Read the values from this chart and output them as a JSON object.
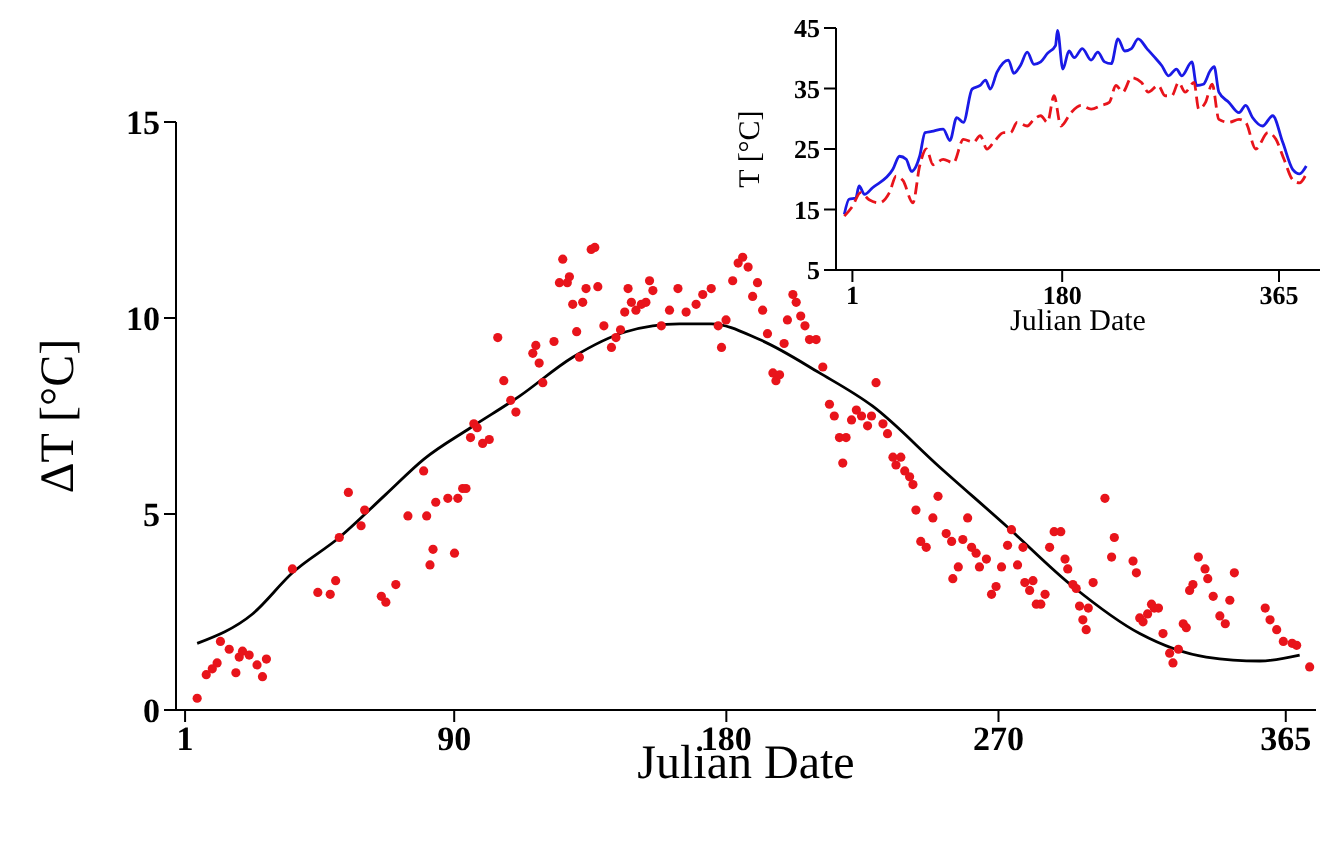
{
  "chart_data": [
    {
      "type": "scatter",
      "xlabel": "Julian Date",
      "ylabel": "ΔT [°C]",
      "xlim": [
        -2,
        375
      ],
      "xticks": [
        1,
        90,
        180,
        270,
        365
      ],
      "ylim": [
        0,
        15
      ],
      "yticks": [
        0,
        5,
        10,
        15
      ],
      "grid": false,
      "legend": false,
      "marker": "circle",
      "series": [
        {
          "color": "#e8141b",
          "x": [
            5,
            8,
            10,
            11.6,
            12.7,
            15.6,
            17.8,
            18.9,
            20,
            22.2,
            24.8,
            26.6,
            27.9,
            36.5,
            44.9,
            49,
            50.8,
            52,
            55,
            59.2,
            60.4,
            65.9,
            67.4,
            70.7,
            74.7,
            79.9,
            80.9,
            82,
            83,
            83.9,
            87.9,
            90.1,
            91.2,
            92.8,
            93.9,
            95.4,
            96.5,
            97.6,
            99.4,
            101.6,
            104.4,
            106.4,
            108.7,
            110.4,
            116,
            117,
            118.1,
            119.3,
            123,
            124.8,
            125.9,
            127.4,
            128.1,
            129.2,
            130.5,
            131.4,
            132.5,
            133.6,
            135.3,
            136.5,
            137.5,
            139.5,
            142,
            143.5,
            145,
            146.4,
            147.5,
            148.6,
            150.1,
            151.9,
            153.4,
            154.6,
            155.7,
            158.5,
            161.2,
            164,
            166.7,
            170,
            172.2,
            175,
            177.3,
            178.4,
            179.9,
            182.1,
            183.9,
            185.4,
            187.2,
            188.7,
            190.3,
            192,
            193.6,
            195.4,
            196.4,
            197.6,
            199.1,
            200.2,
            202,
            203.1,
            204.6,
            206,
            207.5,
            209.7,
            211.9,
            214.1,
            215.7,
            217.4,
            218.5,
            219.6,
            221.4,
            223,
            224.7,
            226.7,
            228,
            229.5,
            231.8,
            233.3,
            235.1,
            236.1,
            237.7,
            239,
            240.6,
            241.7,
            242.7,
            244.3,
            246.1,
            248.3,
            250,
            252.7,
            254.5,
            254.9,
            256.7,
            258.2,
            259.8,
            261.1,
            262.6,
            263.7,
            266,
            267.7,
            269.2,
            271,
            273,
            274.3,
            276.3,
            278.1,
            278.7,
            280.3,
            281.4,
            282.5,
            284,
            285.4,
            286.9,
            288.4,
            290.6,
            292,
            292.9,
            294.6,
            295.7,
            296.8,
            297.9,
            299,
            299.7,
            301.3,
            305.2,
            307.4,
            308.3,
            314.5,
            315.6,
            316.7,
            317.8,
            319.3,
            320.6,
            321.5,
            322.9,
            324.4,
            326.6,
            327.7,
            329.5,
            331.1,
            332.1,
            333.2,
            334.3,
            336.1,
            338.3,
            339.2,
            341,
            343.2,
            345,
            346.5,
            348,
            358.2,
            359.8,
            362,
            364.2,
            367.1,
            368.6,
            372.9
          ],
          "values": [
            0.3,
            0.9,
            1.05,
            1.2,
            1.75,
            1.55,
            0.95,
            1.35,
            1.5,
            1.4,
            1.15,
            0.85,
            1.3,
            3.6,
            3,
            2.95,
            3.3,
            4.4,
            5.55,
            4.7,
            5.1,
            2.9,
            2.75,
            3.2,
            4.95,
            6.1,
            4.95,
            3.7,
            4.1,
            5.3,
            5.4,
            4,
            5.4,
            5.65,
            5.65,
            6.95,
            7.3,
            7.2,
            6.8,
            6.9,
            9.5,
            8.4,
            7.9,
            7.6,
            9.1,
            9.3,
            8.85,
            8.35,
            9.4,
            10.9,
            11.5,
            10.9,
            11.05,
            10.35,
            9.65,
            9,
            10.4,
            10.75,
            11.75,
            11.8,
            10.8,
            9.8,
            9.25,
            9.5,
            9.7,
            10.15,
            10.75,
            10.4,
            10.2,
            10.35,
            10.4,
            10.95,
            10.7,
            9.8,
            10.2,
            10.75,
            10.15,
            10.35,
            10.6,
            10.75,
            9.8,
            9.25,
            9.95,
            10.95,
            11.4,
            11.55,
            11.3,
            10.55,
            10.9,
            10.2,
            9.6,
            8.6,
            8.4,
            8.55,
            9.35,
            9.95,
            10.6,
            10.4,
            10.05,
            9.8,
            9.45,
            9.45,
            8.75,
            7.8,
            7.5,
            6.95,
            6.3,
            6.95,
            7.4,
            7.65,
            7.5,
            7.25,
            7.5,
            8.35,
            7.3,
            7.05,
            6.45,
            6.25,
            6.45,
            6.1,
            5.95,
            5.75,
            5.1,
            4.3,
            4.15,
            4.9,
            5.45,
            4.5,
            4.3,
            3.35,
            3.65,
            4.35,
            4.9,
            4.15,
            4,
            3.65,
            3.85,
            2.95,
            3.15,
            3.65,
            4.2,
            4.6,
            3.7,
            4.15,
            3.25,
            3.05,
            3.3,
            2.7,
            2.7,
            2.95,
            4.15,
            4.55,
            4.55,
            3.85,
            3.6,
            3.2,
            3.1,
            2.65,
            2.3,
            2.05,
            2.6,
            3.25,
            5.4,
            3.9,
            4.4,
            3.8,
            3.5,
            2.35,
            2.25,
            2.45,
            2.7,
            2.6,
            2.6,
            1.95,
            1.45,
            1.2,
            1.55,
            2.2,
            2.1,
            3.05,
            3.2,
            3.9,
            3.6,
            3.35,
            2.9,
            2.4,
            2.2,
            2.8,
            3.5,
            2.6,
            2.3,
            2.05,
            1.75,
            1.7,
            1.65,
            1.1
          ]
        },
        {
          "type": "line",
          "color": "#000000",
          "marker": "none",
          "x": [
            5,
            23.3,
            36.5,
            52,
            67.4,
            80,
            95.4,
            111.5,
            129.2,
            146.8,
            164.5,
            175,
            191,
            210.8,
            228.4,
            250.5,
            272.5,
            294.6,
            316.7,
            338.7,
            356.4,
            369.6
          ],
          "values": [
            1.7,
            2.45,
            3.5,
            4.4,
            5.5,
            6.4,
            7.2,
            8,
            9,
            9.65,
            9.85,
            9.85,
            9.45,
            8.6,
            7.75,
            6.2,
            4.7,
            3.15,
            1.95,
            1.35,
            1.25,
            1.4
          ]
        }
      ]
    },
    {
      "type": "line",
      "xlabel": "Julian Date",
      "ylabel": "T [°C]",
      "xlim": [
        -13,
        400
      ],
      "xticks": [
        1,
        180,
        365
      ],
      "ylim": [
        5,
        45
      ],
      "yticks": [
        5,
        15,
        25,
        35,
        45
      ],
      "grid": false,
      "legend": false,
      "marker": "none",
      "series": [
        {
          "color": "#1a1ae6",
          "line_style": "solid",
          "x": [
            -5.9,
            -1.9,
            3.9,
            6.7,
            11.3,
            18.2,
            35.4,
            41.2,
            46.9,
            51.5,
            58.4,
            63,
            68.7,
            78.5,
            84.2,
            90,
            95.7,
            103.1,
            110,
            114.6,
            118.6,
            124.4,
            134.1,
            138.7,
            144.4,
            150.2,
            155.9,
            161.7,
            167.4,
            174.3,
            176,
            180.6,
            185.8,
            190.3,
            197.2,
            204.7,
            210.4,
            216.2,
            221.9,
            227.6,
            233.4,
            239.1,
            244.8,
            252.3,
            259.2,
            264.9,
            270.7,
            277.5,
            282.1,
            290.7,
            294.7,
            300.5,
            306.2,
            309.7,
            313.7,
            322.3,
            330.9,
            336.6,
            342.4,
            351,
            359.6,
            368.2,
            376.8,
            382.5,
            388.3
          ],
          "values": [
            14.2,
            16.7,
            16.9,
            18.9,
            17.5,
            18.6,
            21.6,
            23.8,
            23.3,
            21.3,
            23.8,
            27.7,
            27.9,
            28.3,
            26.4,
            30.2,
            29.4,
            34.9,
            35.5,
            36.4,
            34.9,
            37.7,
            39.7,
            37.5,
            38.8,
            41,
            39,
            39.4,
            40.8,
            42.1,
            44.6,
            38.2,
            41.2,
            40.1,
            41.6,
            39.7,
            41,
            39.4,
            39.1,
            43.2,
            41.2,
            41.6,
            43.2,
            41.6,
            40.1,
            38.8,
            37.1,
            38.2,
            37.1,
            39.4,
            35.5,
            35.7,
            37.9,
            38.6,
            34.4,
            32.7,
            31,
            32.2,
            30.2,
            28.8,
            30.5,
            26.1,
            21.6,
            20.9,
            22.2
          ]
        },
        {
          "color": "#e8141b",
          "line_style": "dashed",
          "x": [
            -5.9,
            1,
            7.9,
            15.3,
            23.9,
            32.6,
            38.3,
            44.1,
            52.6,
            58.4,
            64.1,
            69.8,
            78.5,
            87.1,
            95.7,
            104.3,
            110,
            115.8,
            121.5,
            130.1,
            135.9,
            141.6,
            150.2,
            155.9,
            161.7,
            167.4,
            173.1,
            178.9,
            187.5,
            196.1,
            204.7,
            213.3,
            220.2,
            225.9,
            231.7,
            239.1,
            247.7,
            253.4,
            262,
            267.8,
            273.5,
            279.3,
            285,
            292.5,
            296.5,
            302.3,
            308,
            313.7,
            322.3,
            330.9,
            336.6,
            345.2,
            355.6,
            362.4,
            369.3,
            376.8,
            382.5,
            388.3
          ],
          "values": [
            13.9,
            15.5,
            17.8,
            16.6,
            16.1,
            17.8,
            20.5,
            19.8,
            16.1,
            22.2,
            25,
            22.4,
            23.3,
            22.7,
            26.6,
            26.1,
            27.2,
            25,
            26.1,
            27.7,
            27.7,
            29.4,
            28.8,
            29.9,
            30.5,
            29.4,
            33.8,
            28.8,
            31,
            32.2,
            31.6,
            32.2,
            32.7,
            35.5,
            34.4,
            36.8,
            36,
            34.4,
            35.5,
            33.8,
            33.8,
            36,
            34.4,
            36,
            31.6,
            32.7,
            35.7,
            29.9,
            29.4,
            29.9,
            29.4,
            25,
            27.7,
            26.6,
            23.3,
            19.9,
            19.4,
            20.9
          ]
        }
      ]
    }
  ]
}
